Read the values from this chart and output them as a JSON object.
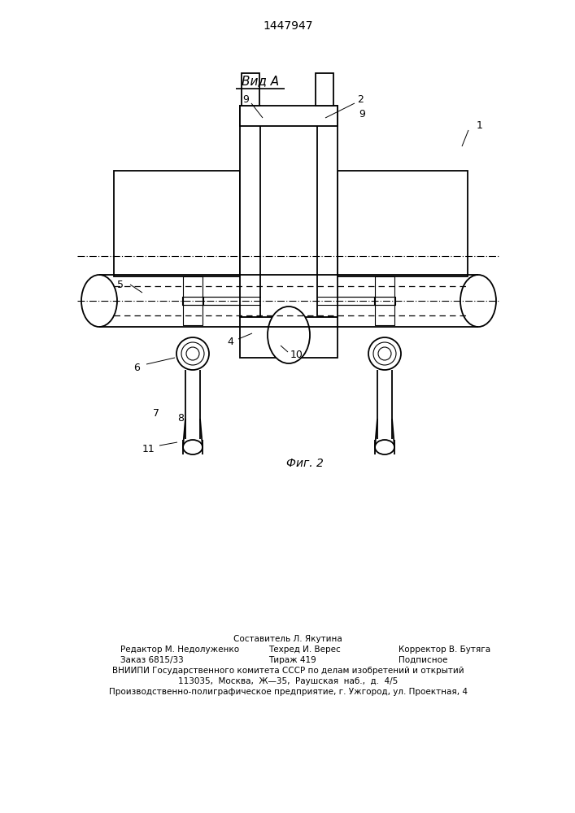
{
  "patent_number": "1447947",
  "view_label": "Вид А",
  "fig_label": "Фиг. 2",
  "footer_line1": "Составитель Л. Якутина",
  "footer_line2_left": "Редактор М. Недолуженко",
  "footer_line2_mid": "Техред И. Верес",
  "footer_line2_right": "Корректор В. Бутяга",
  "footer_line3_left": "Заказ 6815/33",
  "footer_line3_mid": "Тираж 419",
  "footer_line3_right": "Подписное",
  "footer_line4": "ВНИИПИ Государственного комитета СССР по делам изобретений и открытий",
  "footer_line5": "113035,  Москва,  Ж—35,  Раушская  наб.,  д.  4/5",
  "footer_line6": "Производственно-полиграфическое предприятие, г. Ужгород, ул. Проектная, 4",
  "bg_color": "#ffffff",
  "line_color": "#000000"
}
